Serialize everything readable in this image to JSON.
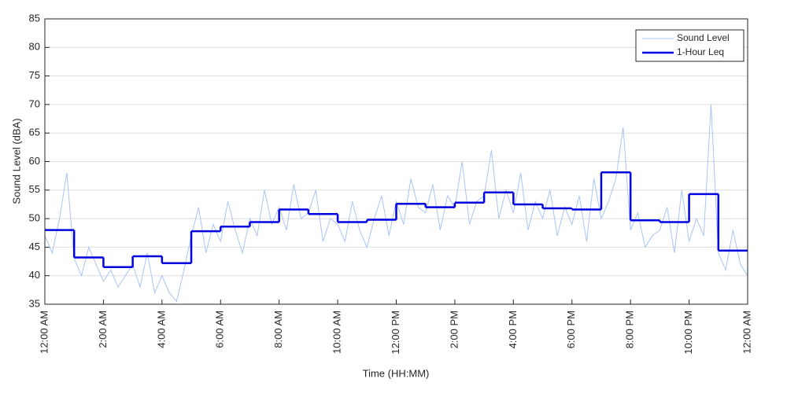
{
  "chart_data": {
    "type": "line",
    "xlabel": "Time (HH:MM)",
    "ylabel": "Sound Level (dBA)",
    "xlim": [
      0,
      24
    ],
    "ylim": [
      35,
      85
    ],
    "xticks": [
      {
        "value": 0,
        "label": "12:00 AM"
      },
      {
        "value": 2,
        "label": "2:00 AM"
      },
      {
        "value": 4,
        "label": "4:00 AM"
      },
      {
        "value": 6,
        "label": "6:00 AM"
      },
      {
        "value": 8,
        "label": "8:00 AM"
      },
      {
        "value": 10,
        "label": "10:00 AM"
      },
      {
        "value": 12,
        "label": "12:00 PM"
      },
      {
        "value": 14,
        "label": "2:00 PM"
      },
      {
        "value": 16,
        "label": "4:00 PM"
      },
      {
        "value": 18,
        "label": "6:00 PM"
      },
      {
        "value": 20,
        "label": "8:00 PM"
      },
      {
        "value": 22,
        "label": "10:00 PM"
      },
      {
        "value": 24,
        "label": "12:00 AM"
      }
    ],
    "yticks": [
      35,
      40,
      45,
      50,
      55,
      60,
      65,
      70,
      75,
      80,
      85
    ],
    "grid": true,
    "legend": "upper right",
    "series": [
      {
        "name": "Sound Level",
        "color": "#a9c4f5",
        "style": "line",
        "x": [
          0,
          0.25,
          0.5,
          0.75,
          1,
          1.25,
          1.5,
          1.75,
          2,
          2.25,
          2.5,
          2.75,
          3,
          3.25,
          3.5,
          3.75,
          4,
          4.25,
          4.5,
          4.75,
          5,
          5.25,
          5.5,
          5.75,
          6,
          6.25,
          6.5,
          6.75,
          7,
          7.25,
          7.5,
          7.75,
          8,
          8.25,
          8.5,
          8.75,
          9,
          9.25,
          9.5,
          9.75,
          10,
          10.25,
          10.5,
          10.75,
          11,
          11.25,
          11.5,
          11.75,
          12,
          12.25,
          12.5,
          12.75,
          13,
          13.25,
          13.5,
          13.75,
          14,
          14.25,
          14.5,
          14.75,
          15,
          15.25,
          15.5,
          15.75,
          16,
          16.25,
          16.5,
          16.75,
          17,
          17.25,
          17.5,
          17.75,
          18,
          18.25,
          18.5,
          18.75,
          19,
          19.25,
          19.5,
          19.75,
          20,
          20.25,
          20.5,
          20.75,
          21,
          21.25,
          21.5,
          21.75,
          22,
          22.25,
          22.5,
          22.75,
          23,
          23.25,
          23.5,
          23.75,
          24
        ],
        "values": [
          47,
          44,
          50,
          58,
          43,
          40,
          45,
          42,
          39,
          41,
          38,
          40,
          42,
          38,
          44,
          37,
          40,
          37,
          35.5,
          41,
          47,
          52,
          44,
          49,
          46,
          53,
          48,
          44,
          50,
          47,
          55,
          49,
          52,
          48,
          56,
          50,
          51,
          55,
          46,
          50,
          49,
          46,
          53,
          48,
          45,
          50,
          54,
          47,
          53,
          49,
          57,
          52,
          51,
          56,
          48,
          54,
          52,
          60,
          49,
          53,
          54,
          62,
          50,
          55,
          51,
          58,
          48,
          53,
          50,
          55,
          47,
          52,
          49,
          54,
          46,
          57,
          50,
          53,
          57,
          66,
          48,
          51,
          45,
          47,
          48,
          52,
          44,
          55,
          46,
          50,
          47,
          70,
          44,
          41,
          48,
          42,
          40
        ]
      },
      {
        "name": "1-Hour Leq",
        "color": "#0000e0",
        "style": "step",
        "x": [
          0,
          1,
          2,
          3,
          4,
          5,
          6,
          7,
          8,
          9,
          10,
          11,
          12,
          13,
          14,
          15,
          16,
          17,
          18,
          19,
          20,
          21,
          22,
          23
        ],
        "values": [
          48.0,
          43.2,
          41.5,
          43.4,
          42.2,
          47.8,
          48.6,
          49.4,
          51.6,
          50.8,
          49.4,
          49.8,
          52.6,
          52.0,
          52.8,
          54.6,
          52.5,
          51.8,
          51.6,
          58.1,
          49.7,
          49.4,
          54.3,
          44.4
        ]
      }
    ]
  }
}
